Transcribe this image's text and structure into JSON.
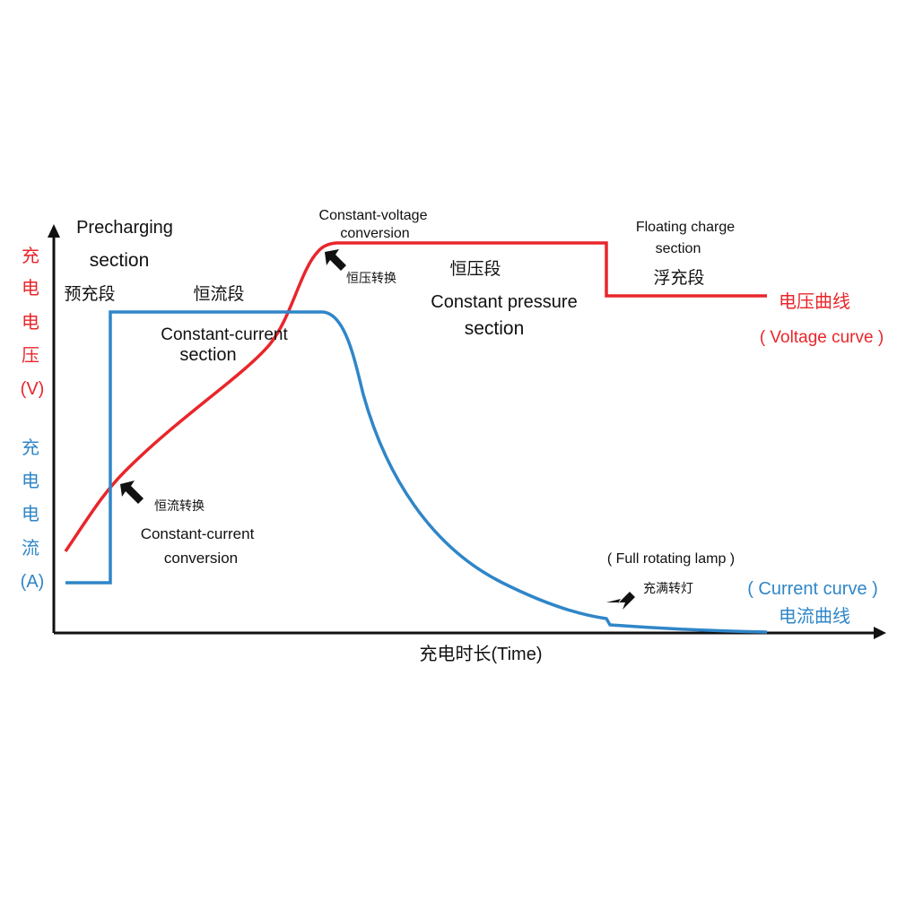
{
  "voltage_axis_label": [
    "充",
    "电",
    "电",
    "压",
    "(V)"
  ],
  "current_axis_label": [
    "充",
    "电",
    "电",
    "流",
    "(A)"
  ],
  "x_axis_label": "充电时长(Time)",
  "sections": {
    "precharging": {
      "en_1": "Precharging",
      "en_2": "section",
      "zh": "预充段"
    },
    "constant_current": {
      "zh": "恒流段",
      "en_1": "Constant-current",
      "en_2": "section"
    },
    "constant_voltage_conversion": {
      "en_1": "Constant-voltage",
      "en_2": "conversion",
      "zh": "恒压转换"
    },
    "constant_pressure": {
      "zh": "恒压段",
      "en_1": "Constant pressure",
      "en_2": "section"
    },
    "floating_charge": {
      "en_1": "Floating charge",
      "en_2": "section",
      "zh": "浮充段"
    }
  },
  "annotations": {
    "constant_current_conversion": {
      "zh": "恒流转换",
      "en_1": "Constant-current",
      "en_2": "conversion"
    },
    "full_rotating_lamp": {
      "en": "( Full rotating lamp )",
      "zh": "充满转灯"
    }
  },
  "legend": {
    "voltage": {
      "zh": "电压曲线",
      "en": "( Voltage curve )"
    },
    "current": {
      "en": "( Current curve )",
      "zh": "电流曲线"
    }
  }
}
